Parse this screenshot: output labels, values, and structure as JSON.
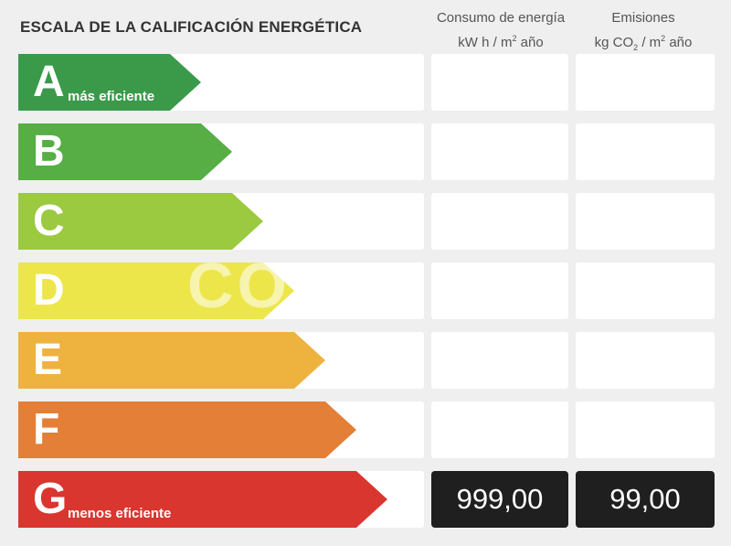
{
  "chart_data": {
    "type": "table",
    "title": "ESCALA DE LA CALIFICACIÓN ENERGÉTICA",
    "columns": [
      {
        "label_line1": "Consumo de energía",
        "label_line2_pre": "kW h  / m",
        "label_line2_sup": "2",
        "label_line2_post": " año"
      },
      {
        "label_line1": "Emisiones",
        "label_line2_pre": "kg CO",
        "label_line2_sub": "2",
        "label_line2_post": "  / m",
        "label_line2_sup": "2",
        "label_line2_end": " año"
      }
    ],
    "ratings": [
      {
        "letter": "A",
        "note": "más eficiente",
        "color": "#3a9a4a"
      },
      {
        "letter": "B",
        "note": "",
        "color": "#56ae45"
      },
      {
        "letter": "C",
        "note": "",
        "color": "#9bc940"
      },
      {
        "letter": "D",
        "note": "",
        "color": "#ece64a"
      },
      {
        "letter": "E",
        "note": "",
        "color": "#eeb23f"
      },
      {
        "letter": "F",
        "note": "",
        "color": "#e37f36"
      },
      {
        "letter": "G",
        "note": "menos eficiente",
        "color": "#d8362f"
      }
    ],
    "selected": {
      "rating": "G",
      "consumo": "999,00",
      "emisiones": "99,00"
    }
  },
  "watermark": "CO"
}
